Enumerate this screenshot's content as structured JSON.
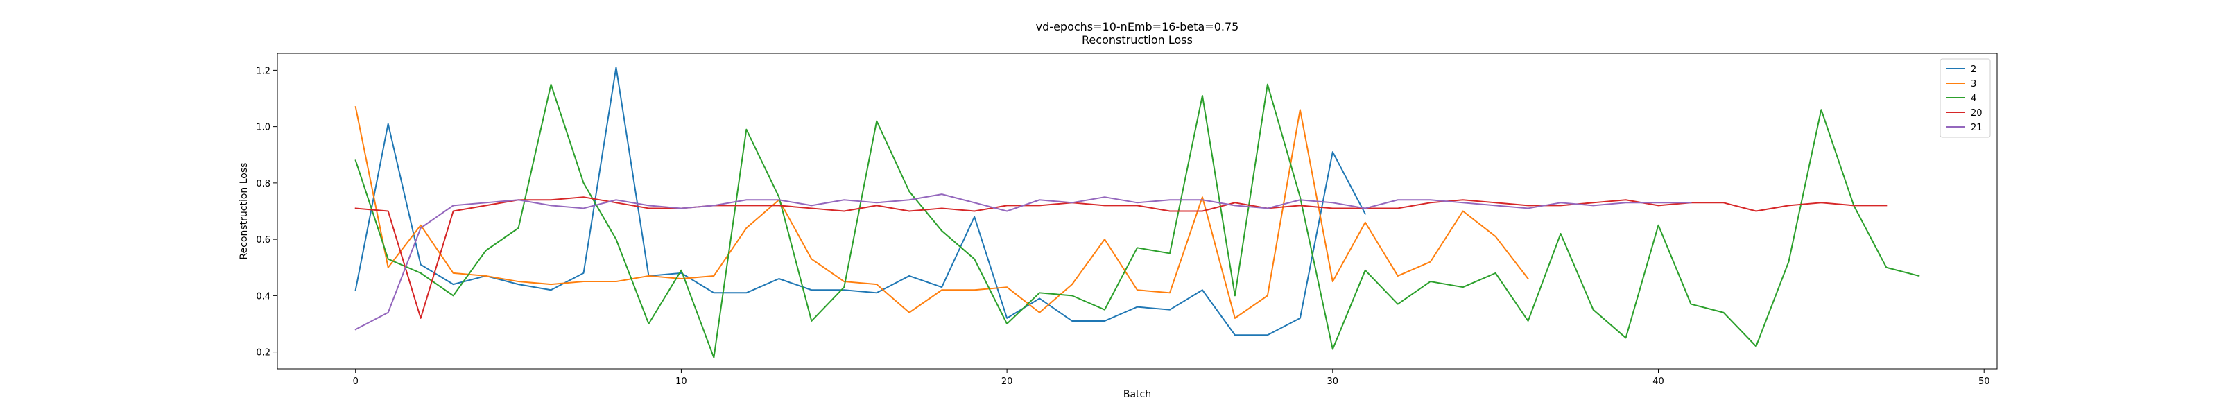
{
  "chart_data": {
    "type": "line",
    "title": "vd-epochs=10-nEmb=16-beta=0.75",
    "subtitle": "Reconstruction Loss",
    "xlabel": "Batch",
    "ylabel": "Reconstruction Loss",
    "xlim": [
      -2.4,
      50.4
    ],
    "ylim": [
      0.14,
      1.26
    ],
    "xticks": [
      0,
      10,
      20,
      30,
      40,
      50
    ],
    "yticks": [
      0.2,
      0.4,
      0.6,
      0.8,
      1.0,
      1.2
    ],
    "grid": false,
    "legend_position": "top-right",
    "series": [
      {
        "name": "2",
        "color": "#1f77b4",
        "values": [
          0.42,
          1.01,
          0.51,
          0.44,
          0.47,
          0.44,
          0.42,
          0.48,
          1.21,
          0.47,
          0.48,
          0.41,
          0.41,
          0.46,
          0.42,
          0.42,
          0.41,
          0.47,
          0.43,
          0.68,
          0.32,
          0.39,
          0.31,
          0.31,
          0.36,
          0.35,
          0.42,
          0.26,
          0.26,
          0.32,
          0.91,
          0.69
        ]
      },
      {
        "name": "3",
        "color": "#ff7f0e",
        "values": [
          1.07,
          0.5,
          0.65,
          0.48,
          0.47,
          0.45,
          0.44,
          0.45,
          0.45,
          0.47,
          0.46,
          0.47,
          0.64,
          0.74,
          0.53,
          0.45,
          0.44,
          0.34,
          0.42,
          0.42,
          0.43,
          0.34,
          0.44,
          0.6,
          0.42,
          0.41,
          0.75,
          0.32,
          0.4,
          1.06,
          0.45,
          0.66,
          0.47,
          0.52,
          0.7,
          0.61,
          0.46
        ]
      },
      {
        "name": "4",
        "color": "#2ca02c",
        "values": [
          0.88,
          0.53,
          0.48,
          0.4,
          0.56,
          0.64,
          1.15,
          0.8,
          0.6,
          0.3,
          0.49,
          0.18,
          0.99,
          0.75,
          0.31,
          0.43,
          1.02,
          0.77,
          0.63,
          0.53,
          0.3,
          0.41,
          0.4,
          0.35,
          0.57,
          0.55,
          1.11,
          0.4,
          1.15,
          0.75,
          0.21,
          0.49,
          0.37,
          0.45,
          0.43,
          0.48,
          0.31,
          0.62,
          0.35,
          0.25,
          0.65,
          0.37,
          0.34,
          0.22,
          0.52,
          1.06,
          0.72,
          0.5,
          0.47
        ]
      },
      {
        "name": "20",
        "color": "#d62728",
        "values": [
          0.71,
          0.7,
          0.32,
          0.7,
          0.72,
          0.74,
          0.74,
          0.75,
          0.73,
          0.71,
          0.71,
          0.72,
          0.72,
          0.72,
          0.71,
          0.7,
          0.72,
          0.7,
          0.71,
          0.7,
          0.72,
          0.72,
          0.73,
          0.72,
          0.72,
          0.7,
          0.7,
          0.73,
          0.71,
          0.72,
          0.71,
          0.71,
          0.71,
          0.73,
          0.74,
          0.73,
          0.72,
          0.72,
          0.73,
          0.74,
          0.72,
          0.73,
          0.73,
          0.7,
          0.72,
          0.73,
          0.72,
          0.72
        ]
      },
      {
        "name": "21",
        "color": "#9467bd",
        "values": [
          0.28,
          0.34,
          0.64,
          0.72,
          0.73,
          0.74,
          0.72,
          0.71,
          0.74,
          0.72,
          0.71,
          0.72,
          0.74,
          0.74,
          0.72,
          0.74,
          0.73,
          0.74,
          0.76,
          0.73,
          0.7,
          0.74,
          0.73,
          0.75,
          0.73,
          0.74,
          0.74,
          0.72,
          0.71,
          0.74,
          0.73,
          0.71,
          0.74,
          0.74,
          0.73,
          0.72,
          0.71,
          0.73,
          0.72,
          0.73,
          0.73,
          0.73
        ]
      }
    ]
  }
}
